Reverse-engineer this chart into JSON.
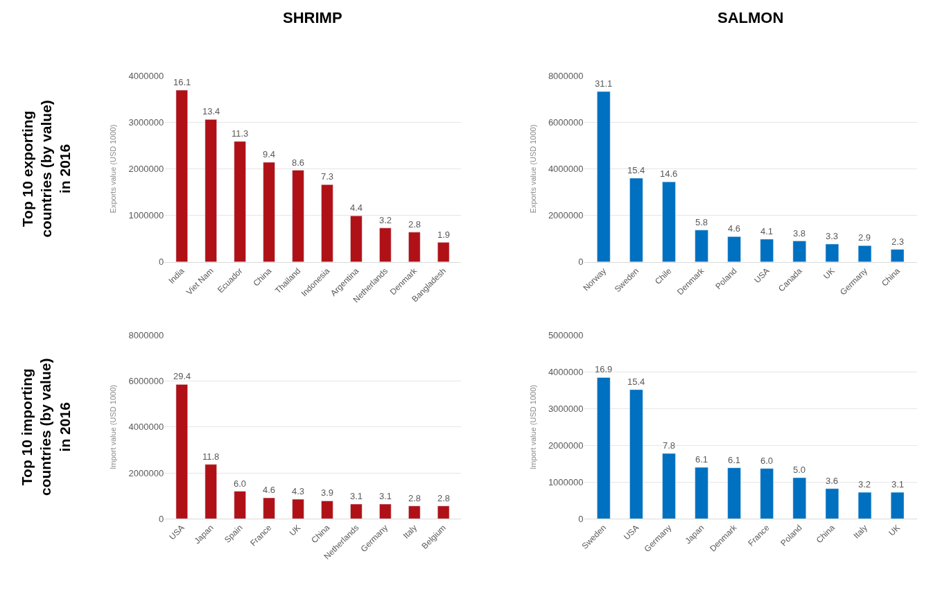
{
  "chart_data": [
    {
      "type": "bar",
      "title": "SHRIMP",
      "ylabel": "Exports value (USD 1000)",
      "categories": [
        "India",
        "Viet Nam",
        "Ecuador",
        "China",
        "Thailand",
        "Indonesia",
        "Argentina",
        "Netherlands",
        "Denmark",
        "Bangladesh"
      ],
      "values": [
        3690000,
        3060000,
        2590000,
        2140000,
        1970000,
        1660000,
        990000,
        730000,
        640000,
        420000
      ],
      "color": "#af1117",
      "ylim": [
        0,
        4000000
      ],
      "yticks": [
        0,
        1000000,
        2000000,
        3000000,
        4000000
      ],
      "grid": "y",
      "annotations": [
        "Top 10 exporting countries (by value) in 2016",
        {
          "text": "16.1",
          "x": "India",
          "y": 3690000
        },
        {
          "text": "13.4",
          "x": "Viet Nam",
          "y": 3060000
        },
        {
          "text": "11.3",
          "x": "Ecuador",
          "y": 2590000
        },
        {
          "text": "9.4",
          "x": "China",
          "y": 2140000
        },
        {
          "text": "8.6",
          "x": "Thailand",
          "y": 1970000
        },
        {
          "text": "7.3",
          "x": "Indonesia",
          "y": 1660000
        },
        {
          "text": "4.4",
          "x": "Argentina",
          "y": 990000
        },
        {
          "text": "3.2",
          "x": "Netherlands",
          "y": 730000
        },
        {
          "text": "2.8",
          "x": "Denmark",
          "y": 640000
        },
        {
          "text": "1.9",
          "x": "Bangladesh",
          "y": 420000
        }
      ]
    },
    {
      "type": "bar",
      "title": "SALMON",
      "ylabel": "Exports value (USD 1000)",
      "categories": [
        "Norway",
        "Sweden",
        "Chile",
        "Denmark",
        "Poland",
        "USA",
        "Canada",
        "UK",
        "Germany",
        "China"
      ],
      "values": [
        7320000,
        3600000,
        3440000,
        1370000,
        1090000,
        980000,
        900000,
        770000,
        700000,
        540000
      ],
      "color": "#0070c0",
      "ylim": [
        0,
        8000000
      ],
      "yticks": [
        0,
        2000000,
        4000000,
        6000000,
        8000000
      ],
      "grid": "y",
      "annotations": [
        {
          "text": "31.1",
          "x": "Norway",
          "y": 7320000
        },
        {
          "text": "15.4",
          "x": "Sweden",
          "y": 3600000
        },
        {
          "text": "14.6",
          "x": "Chile",
          "y": 3440000
        },
        {
          "text": "5.8",
          "x": "Denmark",
          "y": 1370000
        },
        {
          "text": "4.6",
          "x": "Poland",
          "y": 1090000
        },
        {
          "text": "4.1",
          "x": "USA",
          "y": 980000
        },
        {
          "text": "3.8",
          "x": "Canada",
          "y": 900000
        },
        {
          "text": "3.3",
          "x": "UK",
          "y": 770000
        },
        {
          "text": "2.9",
          "x": "Germany",
          "y": 700000
        },
        {
          "text": "2.3",
          "x": "China",
          "y": 540000
        }
      ]
    },
    {
      "type": "bar",
      "ylabel": "Import value (USD 1000)",
      "categories": [
        "USA",
        "Japan",
        "Spain",
        "France",
        "UK",
        "China",
        "Netherlands",
        "Germany",
        "Italy",
        "Belgium"
      ],
      "values": [
        5860000,
        2370000,
        1200000,
        910000,
        850000,
        780000,
        640000,
        640000,
        560000,
        560000
      ],
      "color": "#af1117",
      "ylim": [
        0,
        8000000
      ],
      "yticks": [
        0,
        2000000,
        4000000,
        6000000,
        8000000
      ],
      "grid": "y",
      "annotations": [
        "Top 10 importing countries (by value) in 2016",
        {
          "text": "29.4",
          "x": "USA",
          "y": 5860000
        },
        {
          "text": "11.8",
          "x": "Japan",
          "y": 2370000
        },
        {
          "text": "6.0",
          "x": "Spain",
          "y": 1200000
        },
        {
          "text": "4.6",
          "x": "France",
          "y": 910000
        },
        {
          "text": "4.3",
          "x": "UK",
          "y": 850000
        },
        {
          "text": "3.9",
          "x": "China",
          "y": 780000
        },
        {
          "text": "3.1",
          "x": "Netherlands",
          "y": 640000
        },
        {
          "text": "3.1",
          "x": "Germany",
          "y": 640000
        },
        {
          "text": "2.8",
          "x": "Italy",
          "y": 560000
        },
        {
          "text": "2.8",
          "x": "Belgium",
          "y": 560000
        }
      ]
    },
    {
      "type": "bar",
      "ylabel": "Import value (USD 1000)",
      "categories": [
        "Sweden",
        "USA",
        "Germany",
        "Japan",
        "Denmark",
        "France",
        "Poland",
        "China",
        "Italy",
        "UK"
      ],
      "values": [
        3850000,
        3520000,
        1780000,
        1400000,
        1390000,
        1370000,
        1120000,
        820000,
        720000,
        720000
      ],
      "color": "#0070c0",
      "ylim": [
        0,
        5000000
      ],
      "yticks": [
        0,
        1000000,
        2000000,
        3000000,
        4000000,
        5000000
      ],
      "grid": "y",
      "annotations": [
        {
          "text": "16.9",
          "x": "Sweden",
          "y": 3850000
        },
        {
          "text": "15.4",
          "x": "USA",
          "y": 3520000
        },
        {
          "text": "7.8",
          "x": "Germany",
          "y": 1780000
        },
        {
          "text": "6.1",
          "x": "Japan",
          "y": 1400000
        },
        {
          "text": "6.1",
          "x": "Denmark",
          "y": 1390000
        },
        {
          "text": "6.0",
          "x": "France",
          "y": 1370000
        },
        {
          "text": "5.0",
          "x": "Poland",
          "y": 1120000
        },
        {
          "text": "3.6",
          "x": "China",
          "y": 820000
        },
        {
          "text": "3.2",
          "x": "Italy",
          "y": 720000
        },
        {
          "text": "3.1",
          "x": "UK",
          "y": 720000
        }
      ]
    }
  ]
}
